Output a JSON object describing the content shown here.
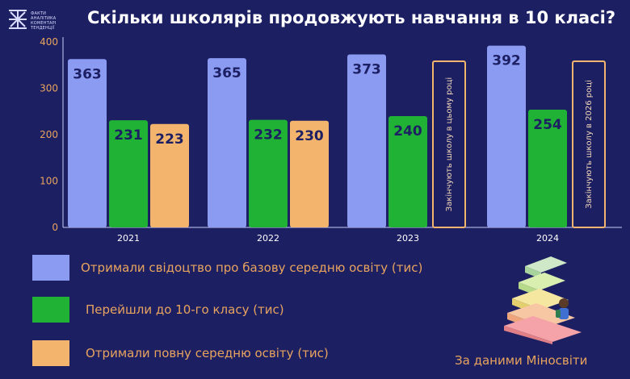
{
  "header": {
    "title": "Скільки школярів продовжують навчання в 10 класі?",
    "logo_lines": [
      "ФАКТИ",
      "АНАЛІТИКА",
      "КОМЕНТАРІ",
      "ТЕНДЕНЦІЇ"
    ]
  },
  "colors": {
    "background": "#1d1f63",
    "series_basic": "#8c9bf2",
    "series_grade10": "#20b235",
    "series_full": "#f3b56e",
    "accent_text": "#e8a45e",
    "value_text": "#1d1f63"
  },
  "chart_data": {
    "type": "bar",
    "categories": [
      "2021",
      "2022",
      "2023",
      "2024"
    ],
    "series": [
      {
        "name": "Отримали  свідоцтво про базову середню освіту (тис)",
        "values": [
          363,
          365,
          373,
          392
        ]
      },
      {
        "name": "Перейшли до 10-го класу (тис)",
        "values": [
          231,
          232,
          240,
          254
        ]
      },
      {
        "name": "Отримали повну середню освіту (тис)",
        "values": [
          223,
          230,
          null,
          null
        ]
      }
    ],
    "annotations": [
      {
        "category": "2023",
        "series": "Отримали повну середню освіту (тис)",
        "text": "Закінчують школу в цьому році"
      },
      {
        "category": "2024",
        "series": "Отримали повну середню освіту (тис)",
        "text": "Закінчують школу в 2026 році"
      }
    ],
    "yticks": [
      0,
      100,
      200,
      300,
      400
    ],
    "ylim": [
      0,
      400
    ],
    "grid": false,
    "legend_position": "bottom-left"
  },
  "footer": {
    "source": "За даними Міносвіти"
  }
}
